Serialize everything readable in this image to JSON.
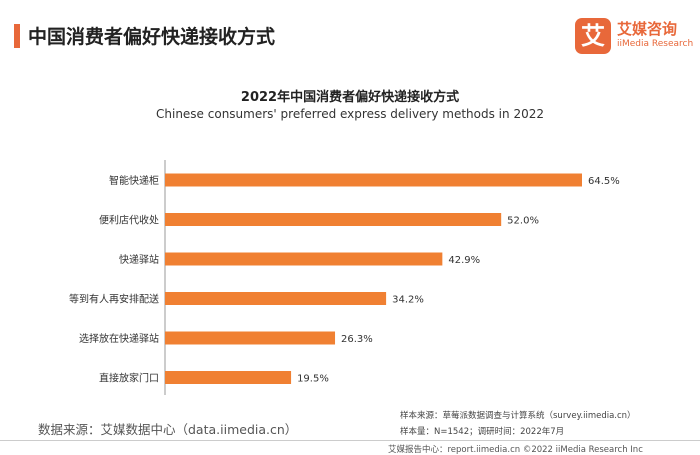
{
  "header": {
    "title": "中国消费者偏好快递接收方式",
    "logo_mark": "艾",
    "logo_cn": "艾媒咨询",
    "logo_en": "iiMedia Research"
  },
  "colors": {
    "accent": "#e8683a",
    "bar": "#f08032"
  },
  "chart_data": {
    "type": "bar",
    "orientation": "horizontal",
    "title": "2022年中国消费者偏好快递接收方式",
    "subtitle": "Chinese consumers' preferred express delivery methods in 2022",
    "categories": [
      "智能快递柜",
      "便利店代收处",
      "快递驿站",
      "等到有人再安排配送",
      "选择放在快递驿站",
      "直接放家门口"
    ],
    "values": [
      64.5,
      52.0,
      42.9,
      34.2,
      26.3,
      19.5
    ],
    "value_labels": [
      "64.5%",
      "52.0%",
      "42.9%",
      "34.2%",
      "26.3%",
      "19.5%"
    ],
    "unit": "%",
    "xlim": [
      0,
      64.5
    ],
    "grid": false,
    "legend": "none"
  },
  "footer": {
    "source_left": "数据来源：艾媒数据中心（data.iimedia.cn）",
    "sample_source": "样本来源：草莓派数据调查与计算系统（survey.iimedia.cn）",
    "sample_info": "样本量：N=1542；调研时间：2022年7月",
    "report_center": "艾媒报告中心：report.iimedia.cn  ©2022  iiMedia Research  Inc"
  }
}
